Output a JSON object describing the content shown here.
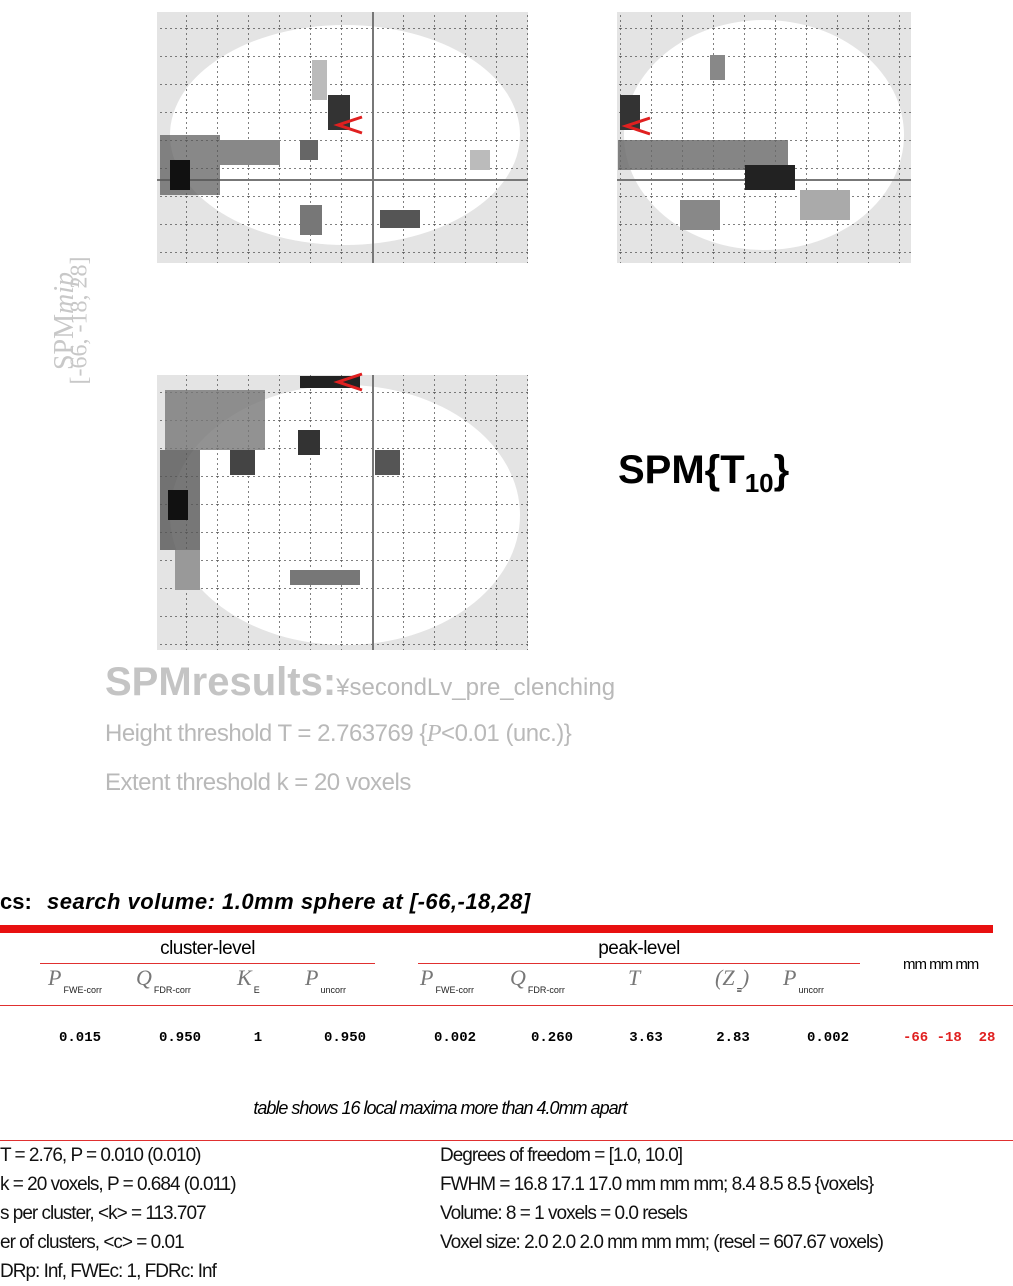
{
  "mip": {
    "label": "SPM",
    "label_italic": "mip",
    "coordinates": "[-66, -18, 28]"
  },
  "stat": {
    "prefix": "SPM{T",
    "subscript": "10",
    "suffix": "}"
  },
  "results": {
    "title": "SPMresults:",
    "path": "¥secondLv_pre_clenching",
    "height_threshold": {
      "before": "Height threshold T = 2.763769 {",
      "italic": "P",
      "after": "<0.01 (unc.)}"
    },
    "extent_threshold": "Extent threshold k = 20 voxels"
  },
  "table": {
    "section": "cs:",
    "subtitle": "search volume: 1.0mm sphere at [-66,-18,28]",
    "groups": [
      "cluster-level",
      "peak-level"
    ],
    "coord_header": "mm mm mm",
    "columns": [
      {
        "symbol": "P",
        "sub": "FWE-corr"
      },
      {
        "symbol": "Q",
        "sub": "FDR-corr"
      },
      {
        "symbol": "K",
        "sub": "E"
      },
      {
        "symbol": "P",
        "sub": "uncorr"
      },
      {
        "symbol": "P",
        "sub": "FWE-corr"
      },
      {
        "symbol": "Q",
        "sub": "FDR-corr"
      },
      {
        "symbol": "T"
      },
      {
        "symbol": "(Z",
        "sub": "≡",
        "suffix": ")"
      },
      {
        "symbol": "P",
        "sub": "uncorr"
      }
    ],
    "rows": [
      {
        "values": [
          "0.015",
          "0.950",
          "1",
          "0.950",
          "0.002",
          "0.260",
          "3.63",
          "2.83",
          "0.002"
        ],
        "coords": "-66 -18  28"
      }
    ],
    "note": "table shows 16 local maxima more than 4.0mm apart"
  },
  "footer": {
    "left": [
      "T = 2.76, P = 0.010 (0.010)",
      "k = 20 voxels, P = 0.684 (0.011)",
      "s per cluster, <k> = 113.707",
      "er of clusters, <c> = 0.01",
      "DRp: Inf, FWEc: 1, FDRc: Inf"
    ],
    "right": [
      "Degrees of freedom = [1.0, 10.0]",
      "FWHM = 16.8 17.1 17.0 mm mm mm; 8.4 8.5 8.5 {voxels}",
      "Volume: 8 = 1 voxels = 0.0 resels",
      "Voxel size: 2.0 2.0 2.0 mm mm mm; (resel = 607.67 voxels)"
    ]
  }
}
